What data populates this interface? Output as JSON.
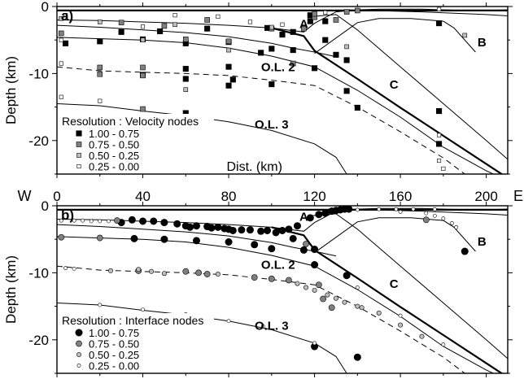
{
  "chart_data": [
    {
      "type": "scatter",
      "panel_label": "a)",
      "xlabel": "Dist. (km)",
      "ylabel": "Depth (km)",
      "xlim": [
        0,
        210
      ],
      "ylim": [
        0,
        -25
      ],
      "xticks": [
        "0",
        "40",
        "80",
        "120",
        "160",
        "200"
      ],
      "yticks": [
        "0",
        "-10",
        "-20"
      ],
      "legend_title": "Resolution : Velocity nodes",
      "legend": [
        {
          "label": "1.00 - 0.75",
          "color": "#000000"
        },
        {
          "label": "0.75 - 0.50",
          "color": "#808080"
        },
        {
          "label": "0.50 - 0.25",
          "color": "#bfbfbf"
        },
        {
          "label": "0.25 - 0.00",
          "color": "#ffffff"
        }
      ],
      "region_labels": [
        {
          "text": "A",
          "x": 115,
          "y": -2.5
        },
        {
          "text": "B",
          "x": 198,
          "y": -5.2
        },
        {
          "text": "C",
          "x": 157,
          "y": -11.5
        },
        {
          "text": "O.L. 2",
          "x": 103,
          "y": -8.9
        },
        {
          "text": "O.L. 3",
          "x": 100,
          "y": -17.5
        }
      ],
      "interfaces": [
        {
          "style": "bold",
          "x": [
            0,
            210
          ],
          "y": [
            -0.6,
            -0.6
          ]
        },
        {
          "style": "solid",
          "x": [
            0,
            20,
            40,
            60,
            80,
            100,
            110,
            115,
            120,
            130,
            140,
            150,
            160,
            170,
            180,
            190,
            200,
            210
          ],
          "y": [
            -2,
            -2.1,
            -2.3,
            -2.5,
            -2.8,
            -3.2,
            -3.6,
            -3.8,
            -2.5,
            -0.8,
            -0.5,
            -0.4,
            -0.4,
            -0.4,
            -0.5,
            -0.6,
            -0.6,
            -0.5
          ]
        },
        {
          "style": "solid",
          "x": [
            0,
            20,
            40,
            60,
            80,
            100,
            110,
            120,
            130
          ],
          "y": [
            -2.8,
            -3.1,
            -3.5,
            -3.9,
            -4.5,
            -5.5,
            -6.2,
            -6.8,
            -7.5
          ]
        },
        {
          "style": "solid",
          "x": [
            0,
            20,
            40,
            60,
            80,
            100,
            120,
            140,
            160,
            180,
            200,
            210
          ],
          "y": [
            -4.6,
            -4.8,
            -5,
            -5.4,
            -6.2,
            -7.4,
            -9,
            -12.5,
            -16.5,
            -21,
            -24.5,
            -26
          ]
        },
        {
          "style": "dashed",
          "x": [
            0,
            20,
            40,
            60,
            80,
            100,
            120,
            140,
            160,
            180,
            190
          ],
          "y": [
            -9,
            -9.6,
            -9.8,
            -10,
            -10.3,
            -11,
            -11.8,
            -15,
            -18.7,
            -22.6,
            -25
          ]
        },
        {
          "style": "solid",
          "x": [
            0,
            20,
            40,
            60,
            80,
            100,
            120,
            130,
            135
          ],
          "y": [
            -14.5,
            -14.8,
            -15.6,
            -16.3,
            -17.2,
            -18.5,
            -20.5,
            -22.5,
            -25
          ]
        },
        {
          "style": "bold",
          "x": [
            100,
            115,
            120,
            140,
            160,
            180,
            200,
            210
          ],
          "y": [
            -3.2,
            -4.4,
            -6.6,
            -10.8,
            -15.1,
            -19.3,
            -23.5,
            -25.6
          ]
        },
        {
          "style": "solid",
          "x": [
            118,
            130,
            140,
            160,
            180,
            200,
            210
          ],
          "y": [
            -1.5,
            -1.2,
            -3.5,
            -9,
            -14.5,
            -20,
            -22.8
          ]
        },
        {
          "style": "solid",
          "x": [
            120,
            140,
            150,
            165,
            180
          ],
          "y": [
            -7,
            -2.4,
            -1.8,
            -1.8,
            -2.2
          ]
        },
        {
          "style": "solid",
          "x": [
            180,
            185,
            195
          ],
          "y": [
            -2.2,
            -3.2,
            -6.8
          ]
        },
        {
          "style": "solid",
          "x": [
            135,
            170,
            200,
            210
          ],
          "y": [
            -0.5,
            -0.8,
            -1.2,
            -1.4
          ]
        }
      ],
      "series": [
        {
          "name": "1.00 - 0.75",
          "color": "#000000",
          "x": [
            4,
            20,
            30,
            40,
            40,
            48,
            60,
            60,
            60,
            60,
            70,
            80,
            82,
            80,
            80,
            95,
            98,
            100,
            100,
            105,
            110,
            110,
            118,
            118,
            120,
            125,
            125,
            130,
            135,
            135,
            140,
            178,
            178,
            178
          ],
          "y": [
            -5.5,
            -5.2,
            -3.8,
            -4.9,
            -10.2,
            -3.7,
            -5.5,
            -9.3,
            -10.8,
            -15.9,
            -3.3,
            -9.0,
            -10.9,
            -11.8,
            -5.3,
            -6.9,
            -3.2,
            -6.3,
            -11.6,
            -4.2,
            -3.8,
            -6.5,
            -1.3,
            -2.2,
            -9.2,
            -5.0,
            -2.2,
            -7.2,
            -8.0,
            -12.6,
            -15.1,
            -2.5,
            -15.6,
            -20.5
          ]
        },
        {
          "name": "0.75 - 0.50",
          "color": "#808080",
          "x": [
            2,
            20,
            20,
            30,
            40,
            40,
            40,
            50,
            60,
            60,
            70,
            80,
            100,
            110,
            115,
            120,
            120,
            130,
            135,
            140
          ],
          "y": [
            -4.0,
            -9.1,
            -10.1,
            -2.4,
            -9.1,
            -10.3,
            -15.3,
            -2.9,
            -4.9,
            -18.2,
            -2.0,
            -5.2,
            -3.3,
            -8.5,
            -3.3,
            -1.6,
            -1.1,
            -2.0,
            -0.8,
            -0.6
          ]
        },
        {
          "name": "0.50 - 0.25",
          "color": "#bfbfbf",
          "x": [
            2,
            20,
            40,
            55,
            60,
            80,
            100,
            135,
            190
          ],
          "y": [
            -1.8,
            -2.3,
            -5.0,
            -2.7,
            -12.4,
            -6.5,
            -3.1,
            -6.0,
            -4.3
          ]
        },
        {
          "name": "0.25 - 0.00",
          "color": "#ffffff",
          "x": [
            2,
            2,
            2,
            4,
            20,
            40,
            55,
            75,
            90,
            105,
            125,
            178,
            178,
            178,
            180
          ],
          "y": [
            -8.5,
            -13.5,
            -5.0,
            -1.3,
            -14.1,
            -3.0,
            -1.3,
            -1.5,
            -2.3,
            -2.7,
            -0.9,
            -0.4,
            -19.2,
            -23.0,
            -24.2
          ]
        }
      ]
    },
    {
      "type": "scatter",
      "panel_label": "b)",
      "xlabel": "",
      "ylabel": "Depth (km)",
      "xlim": [
        0,
        210
      ],
      "ylim": [
        0,
        -25
      ],
      "xticks": [
        "0",
        "40",
        "80",
        "120",
        "160",
        "200"
      ],
      "yticks": [
        "0",
        "-10",
        "-20"
      ],
      "axis_end_labels": [
        "W",
        "E"
      ],
      "legend_title": "Resolution : Interface nodes",
      "legend": [
        {
          "label": "1.00 - 0.75",
          "color": "#000000"
        },
        {
          "label": "0.75 - 0.50",
          "color": "#808080"
        },
        {
          "label": "0.50 - 0.25",
          "color": "#bfbfbf"
        },
        {
          "label": "0.25 - 0.00",
          "color": "#ffffff"
        }
      ],
      "region_labels": [
        {
          "text": "A",
          "x": 115,
          "y": -1.5
        },
        {
          "text": "B",
          "x": 198,
          "y": -5.2
        },
        {
          "text": "C",
          "x": 157,
          "y": -11.5
        },
        {
          "text": "O.L. 2",
          "x": 103,
          "y": -8.7
        },
        {
          "text": "O.L. 3",
          "x": 100,
          "y": -17.8
        }
      ],
      "interfaces": [
        {
          "style": "bold",
          "x": [
            0,
            210
          ],
          "y": [
            -0.6,
            -0.6
          ]
        },
        {
          "style": "solid",
          "x": [
            0,
            20,
            40,
            60,
            80,
            100,
            110,
            115,
            120,
            130,
            140,
            150,
            160,
            170,
            180,
            190,
            200,
            210
          ],
          "y": [
            -2,
            -2.1,
            -2.3,
            -2.5,
            -2.8,
            -3.2,
            -3.6,
            -3.8,
            -2.5,
            -0.8,
            -0.5,
            -0.4,
            -0.4,
            -0.4,
            -0.5,
            -0.6,
            -0.6,
            -0.5
          ]
        },
        {
          "style": "solid",
          "x": [
            0,
            20,
            40,
            60,
            80,
            100,
            110,
            120,
            130
          ],
          "y": [
            -2.8,
            -3.1,
            -3.5,
            -3.9,
            -4.5,
            -5.5,
            -6.2,
            -6.8,
            -7.5
          ]
        },
        {
          "style": "solid",
          "x": [
            0,
            20,
            40,
            60,
            80,
            100,
            120,
            140,
            160,
            180,
            200,
            210
          ],
          "y": [
            -4.6,
            -4.8,
            -5,
            -5.4,
            -6.2,
            -7.4,
            -9,
            -12.5,
            -16.5,
            -21,
            -24.5,
            -26
          ]
        },
        {
          "style": "dashed",
          "x": [
            0,
            20,
            40,
            60,
            80,
            100,
            120,
            140,
            160,
            180,
            190
          ],
          "y": [
            -9,
            -9.6,
            -9.8,
            -10,
            -10.3,
            -11,
            -11.8,
            -15,
            -18.7,
            -22.6,
            -25
          ]
        },
        {
          "style": "solid",
          "x": [
            0,
            20,
            40,
            60,
            80,
            100,
            120,
            130,
            135
          ],
          "y": [
            -14.5,
            -14.8,
            -15.6,
            -16.3,
            -17.2,
            -18.5,
            -20.5,
            -22.5,
            -25
          ]
        },
        {
          "style": "bold",
          "x": [
            100,
            115,
            120,
            140,
            160,
            180,
            200,
            210
          ],
          "y": [
            -3.2,
            -4.4,
            -6.6,
            -10.8,
            -15.1,
            -19.3,
            -23.5,
            -25.6
          ]
        },
        {
          "style": "solid",
          "x": [
            118,
            130,
            140,
            160,
            180,
            200,
            210
          ],
          "y": [
            -1.5,
            -1.2,
            -3.5,
            -9,
            -14.5,
            -20,
            -22.8
          ]
        },
        {
          "style": "solid",
          "x": [
            120,
            140,
            150,
            165,
            180
          ],
          "y": [
            -7,
            -2.4,
            -1.8,
            -1.8,
            -2.2
          ]
        },
        {
          "style": "solid",
          "x": [
            180,
            185,
            195
          ],
          "y": [
            -2.2,
            -3.2,
            -6.8
          ]
        },
        {
          "style": "solid",
          "x": [
            135,
            170,
            200,
            210
          ],
          "y": [
            -0.5,
            -0.8,
            -1.2,
            -1.4
          ]
        }
      ],
      "series": [
        {
          "name": "1.00 - 0.75",
          "color": "#000000",
          "x": [
            30,
            35,
            40,
            45,
            50,
            56,
            60,
            62,
            65,
            70,
            72,
            75,
            78,
            80,
            82,
            86,
            90,
            95,
            98,
            102,
            105,
            108,
            112,
            118,
            122,
            125,
            128,
            130,
            132,
            134,
            136,
            110,
            120,
            36,
            50,
            65,
            80,
            92,
            100,
            115,
            120,
            135,
            120,
            140,
            190
          ],
          "y": [
            -2.5,
            -2.1,
            -2.3,
            -2.3,
            -2.5,
            -2.7,
            -3.0,
            -3.2,
            -3.0,
            -3.1,
            -3.3,
            -3.2,
            -3.4,
            -3.5,
            -3.7,
            -3.6,
            -3.6,
            -3.8,
            -3.7,
            -4.0,
            -3.7,
            -3.5,
            -3.0,
            -1.8,
            -1.3,
            -1.1,
            -0.8,
            -0.7,
            -0.6,
            -0.5,
            -0.5,
            -4.9,
            -6.5,
            -4.9,
            -5.0,
            -5.2,
            -5.4,
            -5.8,
            -6.4,
            -6.6,
            -8.8,
            -10.4,
            -21.0,
            -22.6,
            -6.8
          ]
        },
        {
          "name": "0.75 - 0.50",
          "color": "#808080",
          "x": [
            2,
            20,
            28,
            38,
            60,
            66,
            70,
            92,
            100,
            108,
            116,
            122,
            124,
            128,
            172
          ],
          "y": [
            -4.7,
            -4.8,
            -2.2,
            -9.7,
            -9.8,
            -10.0,
            -10.2,
            -10.7,
            -10.9,
            -11.1,
            -5.7,
            -11.8,
            -13.9,
            -15.2,
            -2.1
          ]
        },
        {
          "name": "0.50 - 0.25",
          "color": "#bfbfbf",
          "x": [
            25,
            38,
            44,
            50,
            75,
            112,
            116,
            120,
            126,
            130,
            134,
            140,
            142,
            150,
            160,
            170
          ],
          "y": [
            -9.7,
            -9.5,
            -9.8,
            -10.1,
            -10.2,
            -11.6,
            -12.2,
            -12.6,
            -13.3,
            -13.8,
            -14.4,
            -15.0,
            -15.2,
            -16.0,
            -17.8,
            -19.5
          ]
        },
        {
          "name": "0.25 - 0.00",
          "color": "#ffffff",
          "x": [
            2,
            8,
            12,
            16,
            20,
            24,
            4,
            8,
            20,
            40,
            60,
            80,
            96,
            120,
            150,
            158,
            166,
            176,
            140,
            160,
            180,
            140,
            160,
            172,
            176,
            180,
            184,
            186
          ],
          "y": [
            -2.2,
            -2.2,
            -2.2,
            -2.3,
            -2.3,
            -2.3,
            -9.3,
            -9.4,
            -14.8,
            -15.5,
            -16.2,
            -17.2,
            -18.0,
            -20.5,
            -0.5,
            -0.5,
            -0.5,
            -0.5,
            -12.2,
            -16.4,
            -20.7,
            -0.6,
            -0.9,
            -1.1,
            -1.5,
            -1.9,
            -2.6,
            -3.2
          ]
        }
      ]
    }
  ]
}
